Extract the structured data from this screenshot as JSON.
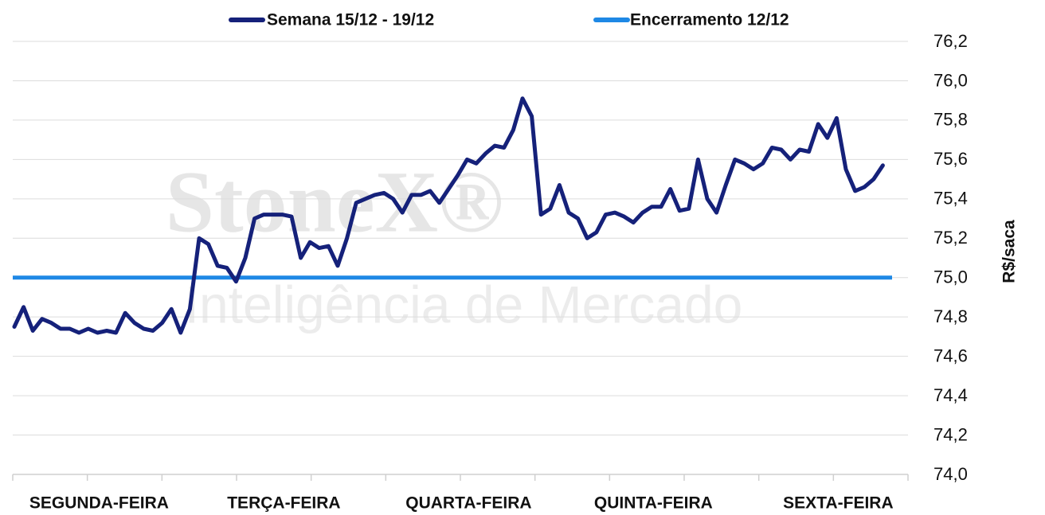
{
  "chart_data": {
    "type": "line",
    "watermark": [
      "StoneX®",
      "Inteligência de Mercado"
    ],
    "y_label": "R$/saca",
    "categories": [
      null,
      null,
      null,
      null,
      null,
      null,
      null,
      null,
      null,
      "SEGUNDA-FEIRA",
      null,
      null,
      null,
      null,
      null,
      null,
      null,
      null,
      null,
      null,
      null,
      null,
      null,
      null,
      null,
      null,
      null,
      null,
      null,
      "TERÇA-FEIRA",
      null,
      null,
      null,
      null,
      null,
      null,
      null,
      null,
      null,
      null,
      null,
      null,
      null,
      null,
      null,
      null,
      null,
      null,
      null,
      "QUARTA-FEIRA",
      null,
      null,
      null,
      null,
      null,
      null,
      null,
      null,
      null,
      null,
      null,
      null,
      null,
      null,
      null,
      null,
      null,
      null,
      null,
      "QUINTA-FEIRA",
      null,
      null,
      null,
      null,
      null,
      null,
      null,
      null,
      null,
      null,
      null,
      null,
      null,
      null,
      null,
      null,
      null,
      null,
      null,
      "SEXTA-FEIRA",
      null,
      null,
      null,
      null,
      null
    ],
    "series": [
      {
        "name": "Semana 15/12 - 19/12",
        "color": "#15217a",
        "values": [
          74.75,
          74.85,
          74.73,
          74.79,
          74.77,
          74.74,
          74.74,
          74.72,
          74.74,
          74.72,
          74.73,
          74.72,
          74.82,
          74.77,
          74.74,
          74.73,
          74.77,
          74.84,
          74.72,
          74.84,
          75.2,
          75.17,
          75.06,
          75.05,
          74.98,
          75.1,
          75.3,
          75.32,
          75.32,
          75.32,
          75.31,
          75.1,
          75.18,
          75.15,
          75.16,
          75.06,
          75.2,
          75.38,
          75.4,
          75.42,
          75.43,
          75.4,
          75.33,
          75.42,
          75.42,
          75.44,
          75.38,
          75.45,
          75.52,
          75.6,
          75.58,
          75.63,
          75.67,
          75.66,
          75.75,
          75.91,
          75.82,
          75.32,
          75.35,
          75.47,
          75.33,
          75.3,
          75.2,
          75.23,
          75.32,
          75.33,
          75.31,
          75.28,
          75.33,
          75.36,
          75.36,
          75.45,
          75.34,
          75.35,
          75.6,
          75.4,
          75.33,
          75.47,
          75.6,
          75.58,
          75.55,
          75.58,
          75.66,
          75.65,
          75.6,
          75.65,
          75.64,
          75.78,
          75.71,
          75.81,
          75.55,
          75.44,
          75.46,
          75.5,
          75.57
        ]
      }
    ],
    "reference": {
      "name": "Encerramento 12/12",
      "color": "#1e88e5",
      "value": 75.0
    },
    "ylim": [
      74.0,
      76.2
    ],
    "yticks": [
      {
        "value": 74.0,
        "label": "74,0"
      },
      {
        "value": 74.2,
        "label": "74,2"
      },
      {
        "value": 74.4,
        "label": "74,4"
      },
      {
        "value": 74.6,
        "label": "74,6"
      },
      {
        "value": 74.8,
        "label": "74,8"
      },
      {
        "value": 75.0,
        "label": "75,0"
      },
      {
        "value": 75.2,
        "label": "75,2"
      },
      {
        "value": 75.4,
        "label": "75,4"
      },
      {
        "value": 75.6,
        "label": "75,6"
      },
      {
        "value": 75.8,
        "label": "75,8"
      },
      {
        "value": 76.0,
        "label": "76,0"
      },
      {
        "value": 76.2,
        "label": "76,2"
      }
    ],
    "grid": true
  }
}
